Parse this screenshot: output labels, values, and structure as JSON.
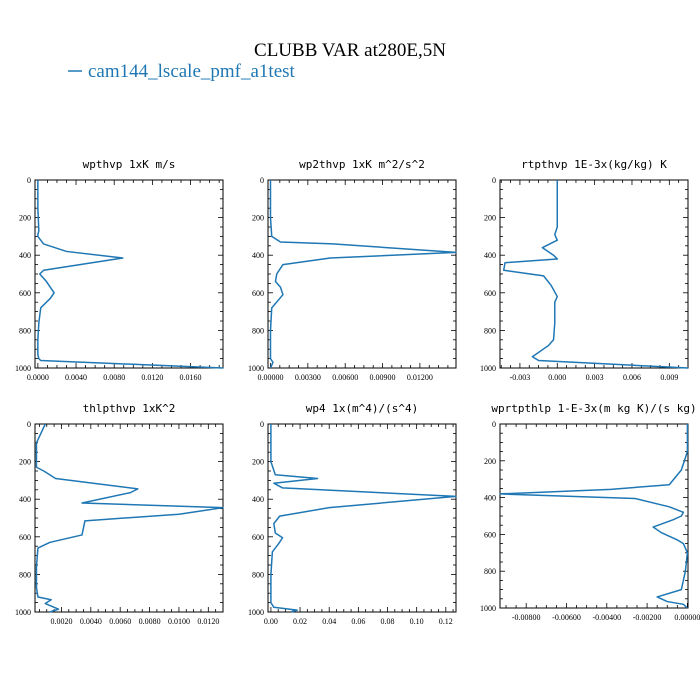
{
  "title": "CLUBB VAR at280E,5N",
  "legend": {
    "label": "cam144_lscale_pmf_a1test",
    "color": "#1f77b4"
  },
  "chart_data": [
    {
      "type": "line",
      "title": "wpthvp   1xK m/s",
      "xlim": [
        -0.0003,
        0.0194
      ],
      "ylim": [
        1000,
        0
      ],
      "xticks": [
        "0.0000",
        "0.0040",
        "0.0080",
        "0.0120",
        "0.0160"
      ],
      "xtick_values": [
        0,
        0.004,
        0.008,
        0.012,
        0.016
      ],
      "yticks": [
        0,
        200,
        400,
        600,
        800,
        1000
      ],
      "series": [
        {
          "color": "#1f77b4",
          "x": [
            0,
            0,
            0.0001,
            0,
            0,
            0.0006,
            0.003,
            0.0089,
            0.0044,
            0.0006,
            0.0002,
            0.0009,
            0.0017,
            0.0013,
            0.0003,
            0.0001,
            0,
            0,
            0.0001,
            0.0003,
            0.0194
          ],
          "y": [
            0,
            150,
            270,
            290,
            300,
            340,
            380,
            415,
            450,
            480,
            500,
            540,
            600,
            630,
            680,
            760,
            850,
            930,
            950,
            960,
            1000
          ]
        }
      ]
    },
    {
      "type": "line",
      "title": "wp2thvp   1xK m^2/s^2",
      "xlim": [
        -0.0002,
        0.0149
      ],
      "ylim": [
        1000,
        0
      ],
      "xticks": [
        "0.00000",
        "0.00300",
        "0.00600",
        "0.00900",
        "0.01200"
      ],
      "xtick_values": [
        0,
        0.003,
        0.006,
        0.009,
        0.012
      ],
      "yticks": [
        0,
        200,
        400,
        600,
        800,
        1000
      ],
      "series": [
        {
          "color": "#1f77b4",
          "x": [
            0,
            0,
            0.0001,
            0.0008,
            0.005,
            0.0149,
            0.0048,
            0.001,
            0.0005,
            0.0004,
            0.0008,
            0.001,
            0.0001,
            0,
            0,
            0.0002,
            0
          ],
          "y": [
            0,
            200,
            300,
            330,
            340,
            385,
            415,
            450,
            500,
            540,
            570,
            610,
            680,
            800,
            950,
            970,
            1000
          ]
        }
      ]
    },
    {
      "type": "line",
      "title": "rtpthvp   1E-3x(kg/kg) K",
      "xlim": [
        -0.0046,
        0.0105
      ],
      "ylim": [
        1000,
        0
      ],
      "xticks": [
        "-0.003",
        "0.000",
        "0.003",
        "0.006",
        "0.009"
      ],
      "xtick_values": [
        -0.003,
        0,
        0.003,
        0.006,
        0.009
      ],
      "yticks": [
        0,
        200,
        400,
        600,
        800,
        1000
      ],
      "series": [
        {
          "color": "#1f77b4",
          "x": [
            0,
            0,
            -0.0002,
            0,
            -0.0012,
            -0.0003,
            0,
            -0.0042,
            -0.0043,
            -0.0011,
            -0.0005,
            0,
            -0.0002,
            -0.0002,
            -0.0003,
            -0.0007,
            -0.002,
            -0.0015,
            0.0105
          ],
          "y": [
            0,
            250,
            290,
            320,
            360,
            400,
            420,
            440,
            480,
            510,
            560,
            620,
            650,
            760,
            850,
            880,
            940,
            960,
            1000
          ]
        }
      ]
    },
    {
      "type": "line",
      "title": "thlpthvp   1xK^2",
      "xlim": [
        0.0002,
        0.013
      ],
      "ylim": [
        1000,
        0
      ],
      "xticks": [
        "0.0020",
        "0.0040",
        "0.0060",
        "0.0080",
        "0.0100",
        "0.0120"
      ],
      "xtick_values": [
        0.002,
        0.004,
        0.006,
        0.008,
        0.01,
        0.012
      ],
      "yticks": [
        0,
        200,
        400,
        600,
        800,
        1000
      ],
      "series": [
        {
          "color": "#1f77b4",
          "x": [
            0.0009,
            0.0006,
            0.0003,
            0.0003,
            0.0008,
            0.0016,
            0.0072,
            0.0067,
            0.0034,
            0.013,
            0.01,
            0.0036,
            0.0034,
            0.0012,
            0.0004,
            0.0003,
            0.0003,
            0.0004,
            0.0013,
            0.0009,
            0.0018,
            0.0012
          ],
          "y": [
            0,
            50,
            100,
            230,
            250,
            290,
            345,
            365,
            420,
            445,
            480,
            515,
            590,
            630,
            660,
            760,
            870,
            920,
            935,
            955,
            985,
            1000
          ]
        }
      ]
    },
    {
      "type": "line",
      "title": "wp4   1x(m^4)/(s^4)",
      "xlim": [
        -0.002,
        0.127
      ],
      "ylim": [
        1000,
        0
      ],
      "xticks": [
        "0.00",
        "0.02",
        "0.04",
        "0.06",
        "0.08",
        "0.10",
        "0.12"
      ],
      "xtick_values": [
        0,
        0.02,
        0.04,
        0.06,
        0.08,
        0.1,
        0.12
      ],
      "yticks": [
        0,
        200,
        400,
        600,
        800,
        1000
      ],
      "series": [
        {
          "color": "#1f77b4",
          "x": [
            0,
            0,
            0.003,
            0.032,
            0.002,
            0.008,
            0.127,
            0.04,
            0.006,
            0.002,
            0.003,
            0.008,
            0.005,
            0.001,
            0,
            0,
            0.002,
            0.018,
            0.014
          ],
          "y": [
            0,
            200,
            270,
            290,
            315,
            340,
            385,
            445,
            490,
            530,
            580,
            605,
            640,
            680,
            800,
            950,
            975,
            990,
            1000
          ]
        }
      ]
    },
    {
      "type": "line",
      "title": "wprtpthlp   1-E-3x(m kg K)/(s kg)",
      "xlim": [
        -0.0093,
        3e-05
      ],
      "ylim": [
        1000,
        0
      ],
      "xticks": [
        "-0.00800",
        "-0.00600",
        "-0.00400",
        "-0.00200",
        "0.00000"
      ],
      "xtick_values": [
        -0.008,
        -0.006,
        -0.004,
        -0.002,
        0
      ],
      "yticks": [
        0,
        200,
        400,
        600,
        800,
        1000
      ],
      "series": [
        {
          "color": "#1f77b4",
          "x": [
            0,
            0,
            -0.0003,
            -0.0009,
            -0.0038,
            -0.0093,
            -0.0026,
            -0.0009,
            -0.0002,
            -0.0003,
            -0.0007,
            -0.0017,
            -0.0013,
            -0.0005,
            -0.0002,
            0,
            -0.0001,
            -0.0003,
            -0.0015,
            -0.001,
            -0.0002,
            0
          ],
          "y": [
            0,
            150,
            250,
            330,
            355,
            380,
            405,
            450,
            480,
            500,
            520,
            560,
            590,
            630,
            650,
            700,
            800,
            900,
            940,
            965,
            980,
            1000
          ]
        }
      ]
    }
  ]
}
